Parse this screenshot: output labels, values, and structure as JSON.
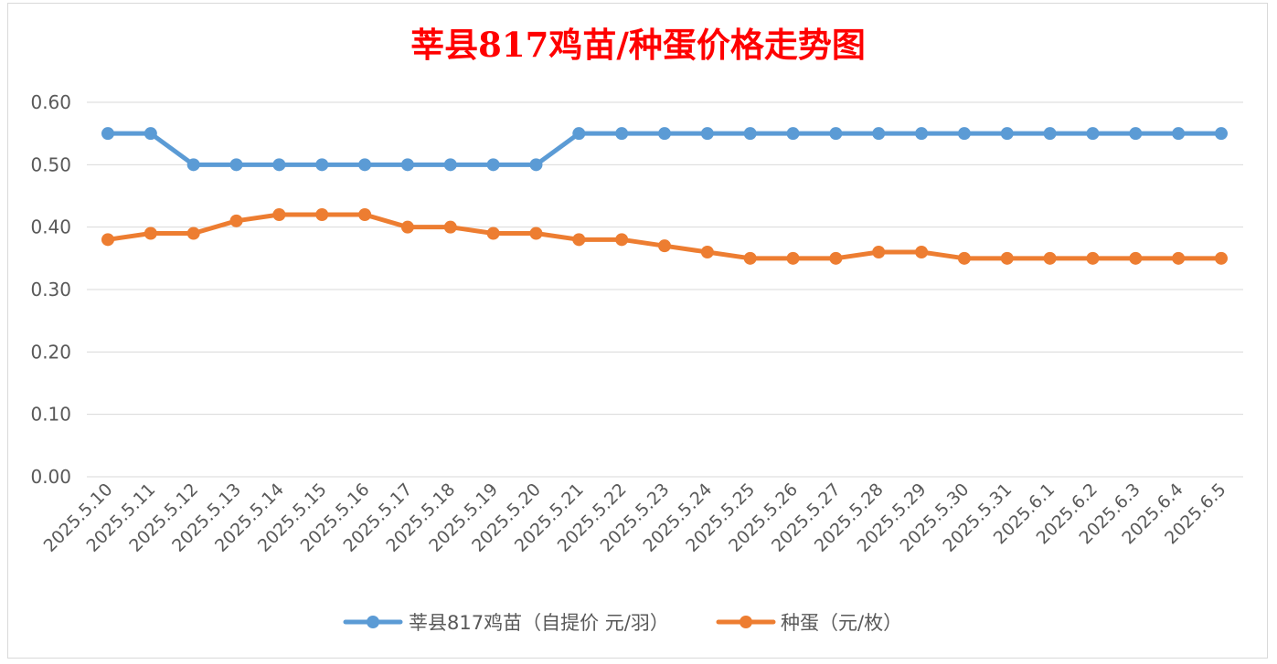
{
  "chart_data": {
    "type": "line",
    "title": "莘县817鸡苗/种蛋价格走势图",
    "xlabel": "",
    "ylabel": "",
    "ylim": [
      0,
      0.6
    ],
    "yticks": [
      "0.00",
      "0.10",
      "0.20",
      "0.30",
      "0.40",
      "0.50",
      "0.60"
    ],
    "grid": true,
    "legend_position": "bottom",
    "categories": [
      "2025.5.10",
      "2025.5.11",
      "2025.5.12",
      "2025.5.13",
      "2025.5.14",
      "2025.5.15",
      "2025.5.16",
      "2025.5.17",
      "2025.5.18",
      "2025.5.19",
      "2025.5.20",
      "2025.5.21",
      "2025.5.22",
      "2025.5.23",
      "2025.5.24",
      "2025.5.25",
      "2025.5.26",
      "2025.5.27",
      "2025.5.28",
      "2025.5.29",
      "2025.5.30",
      "2025.5.31",
      "2025.6.1",
      "2025.6.2",
      "2025.6.3",
      "2025.6.4",
      "2025.6.5"
    ],
    "series": [
      {
        "name": "莘县817鸡苗（自提价 元/羽）",
        "color": "#5b9bd5",
        "values": [
          0.55,
          0.55,
          0.5,
          0.5,
          0.5,
          0.5,
          0.5,
          0.5,
          0.5,
          0.5,
          0.5,
          0.55,
          0.55,
          0.55,
          0.55,
          0.55,
          0.55,
          0.55,
          0.55,
          0.55,
          0.55,
          0.55,
          0.55,
          0.55,
          0.55,
          0.55,
          0.55
        ]
      },
      {
        "name": "种蛋（元/枚）",
        "color": "#ed7d31",
        "values": [
          0.38,
          0.39,
          0.39,
          0.41,
          0.42,
          0.42,
          0.42,
          0.4,
          0.4,
          0.39,
          0.39,
          0.38,
          0.38,
          0.37,
          0.36,
          0.35,
          0.35,
          0.35,
          0.36,
          0.36,
          0.35,
          0.35,
          0.35,
          0.35,
          0.35,
          0.35,
          0.35
        ]
      }
    ]
  }
}
